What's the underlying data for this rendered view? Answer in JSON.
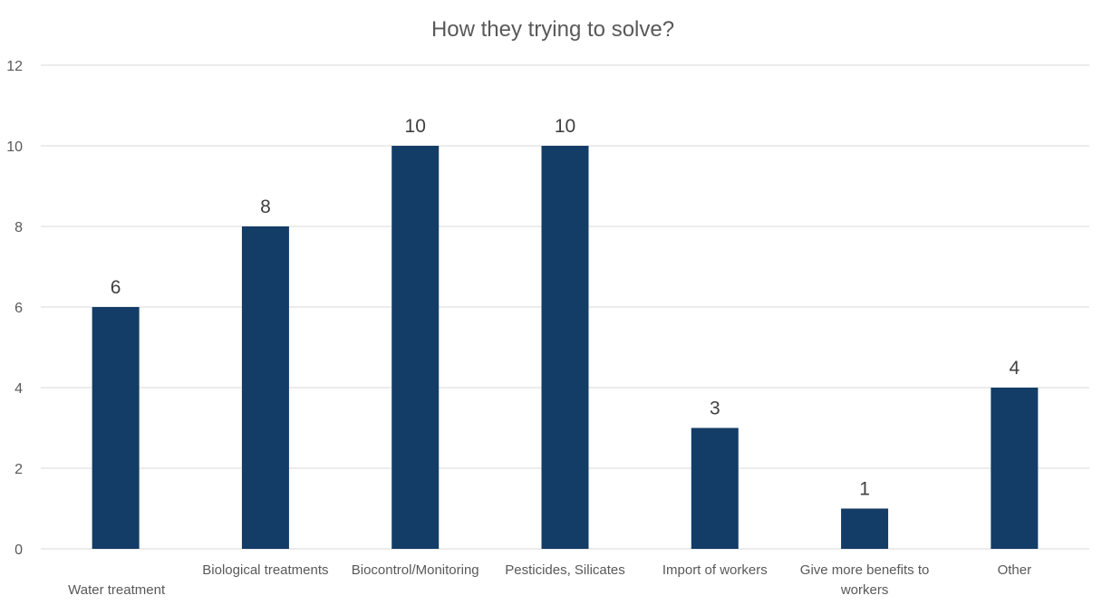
{
  "chart_data": {
    "type": "bar",
    "title": "How they trying to solve?",
    "xlabel": "",
    "ylabel": "",
    "categories": [
      [
        "Water treatment"
      ],
      [
        "Biological treatments"
      ],
      [
        "Biocontrol/Monitoring"
      ],
      [
        "Pesticides, Silicates"
      ],
      [
        "Import of workers"
      ],
      [
        "Give more benefits to",
        "workers"
      ],
      [
        "Other"
      ]
    ],
    "values": [
      6,
      8,
      10,
      10,
      3,
      1,
      4
    ],
    "data_labels": [
      "6",
      "8",
      "10",
      "10",
      "3",
      "1",
      "4"
    ],
    "ylim": [
      0,
      12
    ],
    "yticks": [
      0,
      2,
      4,
      6,
      8,
      10,
      12
    ],
    "ytick_labels": [
      "0",
      "2",
      "4",
      "6",
      "8",
      "10",
      "12"
    ],
    "grid": true,
    "legend": "none",
    "bar_color": "#133D66"
  }
}
